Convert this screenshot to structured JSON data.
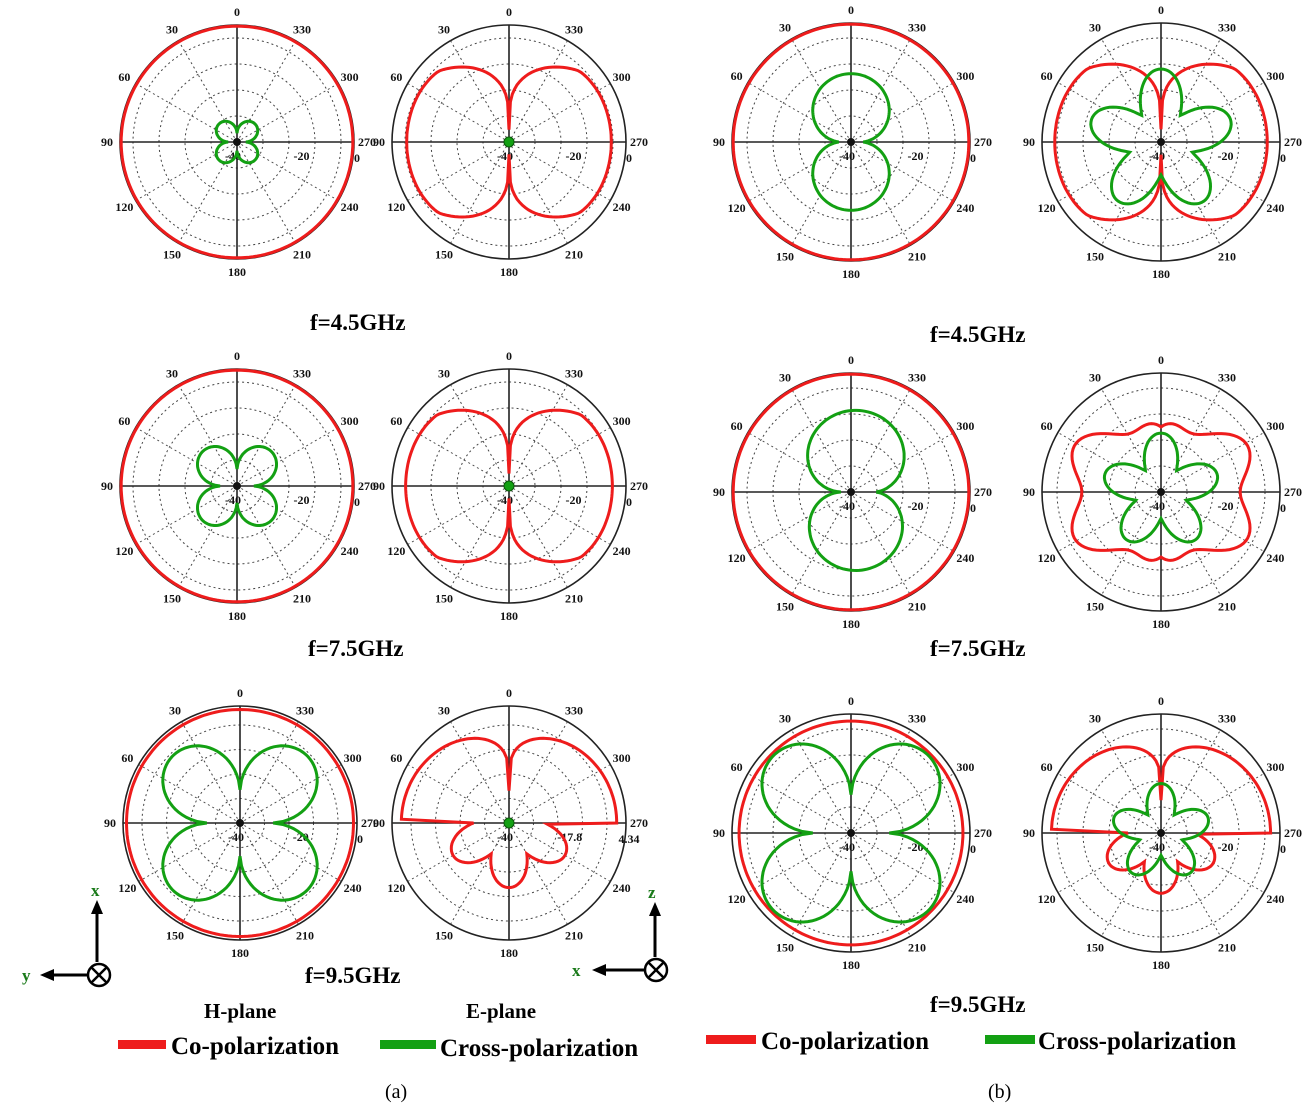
{
  "colors": {
    "co": "#ee1c1c",
    "cross": "#13a013",
    "grid": "#222222"
  },
  "chart_data": {
    "type": "polar",
    "angle_ticks": [
      "0",
      "30",
      "60",
      "90",
      "120",
      "150",
      "180",
      "210",
      "240",
      "270",
      "300",
      "330"
    ],
    "radial_ticks": [
      "-40",
      "-20",
      "0"
    ],
    "radial_unit_range": [
      -40,
      0
    ],
    "grid": true,
    "frequencies": [
      "f=4.5GHz",
      "f=7.5GHz",
      "f=9.5GHz"
    ],
    "panels": [
      {
        "label": "(a)",
        "plots": [
          {
            "freq": "f=4.5GHz",
            "plane": "H-plane",
            "rlabels": [
              "-40",
              "-20",
              "0"
            ],
            "co": {
              "kind": "circle",
              "rel": [
                1.0
              ]
            },
            "cross": {
              "kind": "clover",
              "rel": [
                0.22
              ]
            }
          },
          {
            "freq": "f=4.5GHz",
            "plane": "E-plane",
            "rlabels": [
              "-40",
              "-20",
              "0"
            ],
            "co": {
              "kind": "eshape",
              "rel": [
                0.96,
                0.8
              ]
            },
            "cross": {
              "kind": "dot",
              "rel": [
                0.03
              ]
            }
          },
          {
            "freq": "f=7.5GHz",
            "plane": "H-plane",
            "rlabels": [
              "-40",
              "-20",
              "0"
            ],
            "co": {
              "kind": "circle",
              "rel": [
                1.0
              ]
            },
            "cross": {
              "kind": "clover",
              "rel": [
                0.42
              ]
            }
          },
          {
            "freq": "f=7.5GHz",
            "plane": "E-plane",
            "rlabels": [
              "-40",
              "-20",
              "0"
            ],
            "co": {
              "kind": "eshape",
              "rel": [
                0.97,
                0.85
              ]
            },
            "cross": {
              "kind": "dot",
              "rel": [
                0.03
              ]
            }
          },
          {
            "freq": "f=9.5GHz",
            "plane": "H-plane",
            "rlabels": [
              "-40",
              "-20",
              "0"
            ],
            "co": {
              "kind": "circle",
              "rel": [
                0.98
              ]
            },
            "cross": {
              "kind": "clover",
              "rel": [
                0.82
              ]
            }
          },
          {
            "freq": "f=9.5GHz",
            "plane": "E-plane",
            "rlabels": [
              "-40",
              "-17.8",
              "4.34"
            ],
            "co": {
              "kind": "eshape9",
              "rel": [
                0.93,
                0.6
              ]
            },
            "cross": {
              "kind": "dot",
              "rel": [
                0.03
              ]
            }
          }
        ]
      },
      {
        "label": "(b)",
        "plots": [
          {
            "freq": "f=4.5GHz",
            "plane": "H-plane",
            "rlabels": [
              "-40",
              "-20",
              "0"
            ],
            "co": {
              "kind": "circle",
              "rel": [
                1.0
              ]
            },
            "cross": {
              "kind": "peanut",
              "rel": [
                0.58
              ]
            }
          },
          {
            "freq": "f=4.5GHz",
            "plane": "E-plane",
            "rlabels": [
              "-40",
              "-20",
              "0"
            ],
            "co": {
              "kind": "eshape",
              "rel": [
                0.98,
                0.88
              ]
            },
            "cross": {
              "kind": "flower5",
              "rel": [
                0.62
              ]
            }
          },
          {
            "freq": "f=7.5GHz",
            "plane": "H-plane",
            "rlabels": [
              "-40",
              "-20",
              "0"
            ],
            "co": {
              "kind": "circle",
              "rel": [
                1.0
              ]
            },
            "cross": {
              "kind": "asym",
              "rel": [
                0.72
              ]
            }
          },
          {
            "freq": "f=7.5GHz",
            "plane": "E-plane",
            "rlabels": [
              "-40",
              "-20",
              "0"
            ],
            "co": {
              "kind": "wavy",
              "rel": [
                0.96
              ]
            },
            "cross": {
              "kind": "flower5",
              "rel": [
                0.5
              ]
            }
          },
          {
            "freq": "f=9.5GHz",
            "plane": "H-plane",
            "rlabels": [
              "-40",
              "-20",
              "0"
            ],
            "co": {
              "kind": "circle",
              "rel": [
                0.95
              ]
            },
            "cross": {
              "kind": "clover",
              "rel": [
                0.93
              ]
            }
          },
          {
            "freq": "f=9.5GHz",
            "plane": "E-plane",
            "rlabels": [
              "-40",
              "-20",
              "0"
            ],
            "co": {
              "kind": "eshape9",
              "rel": [
                0.93,
                0.55
              ]
            },
            "cross": {
              "kind": "flower5",
              "rel": [
                0.42
              ]
            }
          }
        ]
      }
    ],
    "legend": {
      "planes": [
        "H-plane",
        "E-plane"
      ],
      "entries": [
        "Co-polarization",
        "Cross-polarization",
        "Co-polarization",
        "Cross-polarization"
      ]
    }
  },
  "axes": {
    "a": {
      "up": "x",
      "left": "y"
    },
    "b": {
      "up": "z",
      "left": "x"
    }
  }
}
